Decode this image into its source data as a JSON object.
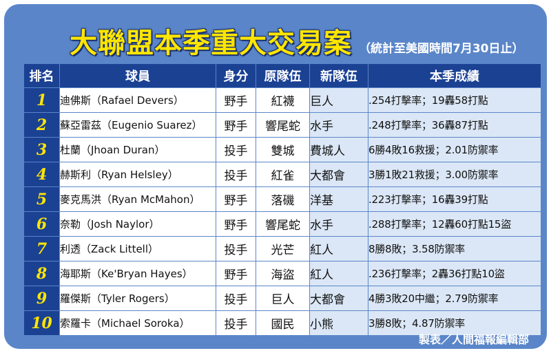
{
  "title": "大聯盟本季重大交易案",
  "subtitle": "（統計至美國時間7月30日止）",
  "headers": [
    "排名",
    "球員",
    "身分",
    "原隊伍",
    "新隊伍",
    "本季成績"
  ],
  "rows": [
    {
      "rank": "1",
      "player": "迪佛斯（Rafael Devers）",
      "position": "野手",
      "old_team": "紅襪",
      "new_team": "巨人",
      "stats": ".254打擊率；19轟58打點"
    },
    {
      "rank": "2",
      "player": "蘇亞雷茲（Eugenio Suarez）",
      "position": "野手",
      "old_team": "響尾蛇",
      "new_team": "水手",
      "stats": ".248打擊率；36轟87打點"
    },
    {
      "rank": "3",
      "player": "杜蘭（Jhoan Duran）",
      "position": "投手",
      "old_team": "雙城",
      "new_team": "費城人",
      "stats": "6勝4敗16救援；2.01防禦率"
    },
    {
      "rank": "4",
      "player": "赫斯利（Ryan Helsley）",
      "position": "投手",
      "old_team": "紅雀",
      "new_team": "大都會",
      "stats": "3勝1敗21救援；3.00防禦率"
    },
    {
      "rank": "5",
      "player": "麥克馬洪（Ryan McMahon）",
      "position": "野手",
      "old_team": "落磯",
      "new_team": "洋基",
      "stats": ".223打擊率；16轟39打點"
    },
    {
      "rank": "6",
      "player": "奈勒（Josh Naylor）",
      "position": "野手",
      "old_team": "響尾蛇",
      "new_team": "水手",
      "stats": ".288打擊率；12轟60打點15盜"
    },
    {
      "rank": "7",
      "player": "利透（Zack Littell）",
      "position": "投手",
      "old_team": "光芒",
      "new_team": "紅人",
      "stats": "8勝8敗；3.58防禦率"
    },
    {
      "rank": "8",
      "player": "海耶斯（Ke'Bryan Hayes）",
      "position": "野手",
      "old_team": "海盜",
      "new_team": "紅人",
      "stats": ".236打擊率；2轟36打點10盜"
    },
    {
      "rank": "9",
      "player": "羅傑斯（Tyler Rogers）",
      "position": "投手",
      "old_team": "巨人",
      "new_team": "大都會",
      "stats": "4勝3敗20中繼；2.79防禦率"
    },
    {
      "rank": "10",
      "player": "索羅卡（Michael Soroka）",
      "position": "投手",
      "old_team": "國民",
      "new_team": "小熊",
      "stats": "3勝8敗；4.87防禦率"
    }
  ],
  "credit": "製表／人間福報編輯部"
}
